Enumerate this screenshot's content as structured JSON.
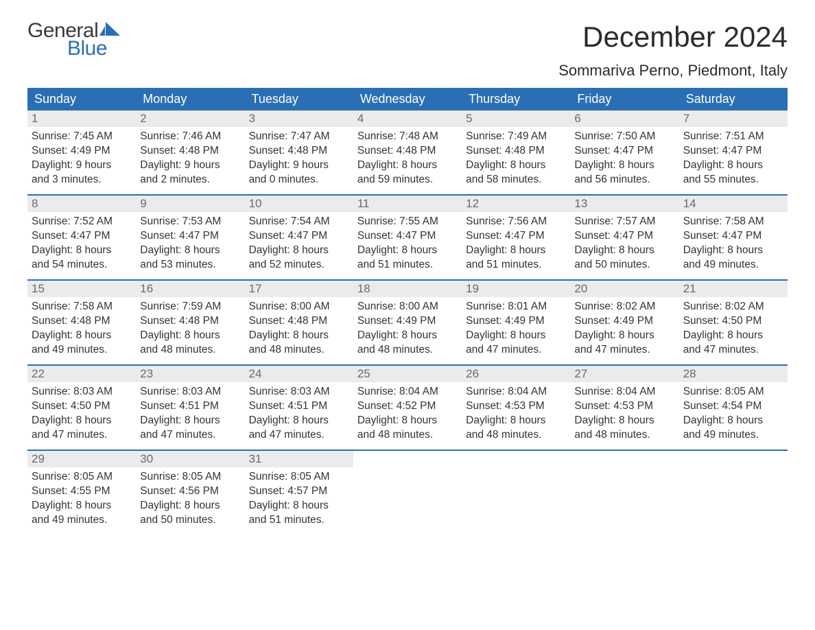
{
  "logo": {
    "word1": "General",
    "word2": "Blue",
    "color1": "#3a3a3a",
    "color2": "#2a6fb5"
  },
  "title": "December 2024",
  "location": "Sommariva Perno, Piedmont, Italy",
  "colors": {
    "header_bg": "#2a6fb5",
    "header_text": "#ffffff",
    "daynum_bg": "#ebebeb",
    "daynum_text": "#6a6a6a",
    "body_text": "#333333",
    "week_border": "#2a6fb5",
    "page_bg": "#ffffff"
  },
  "days_of_week": [
    "Sunday",
    "Monday",
    "Tuesday",
    "Wednesday",
    "Thursday",
    "Friday",
    "Saturday"
  ],
  "weeks": [
    [
      {
        "n": "1",
        "sunrise": "Sunrise: 7:45 AM",
        "sunset": "Sunset: 4:49 PM",
        "daylight": "Daylight: 9 hours\nand 3 minutes."
      },
      {
        "n": "2",
        "sunrise": "Sunrise: 7:46 AM",
        "sunset": "Sunset: 4:48 PM",
        "daylight": "Daylight: 9 hours\nand 2 minutes."
      },
      {
        "n": "3",
        "sunrise": "Sunrise: 7:47 AM",
        "sunset": "Sunset: 4:48 PM",
        "daylight": "Daylight: 9 hours\nand 0 minutes."
      },
      {
        "n": "4",
        "sunrise": "Sunrise: 7:48 AM",
        "sunset": "Sunset: 4:48 PM",
        "daylight": "Daylight: 8 hours\nand 59 minutes."
      },
      {
        "n": "5",
        "sunrise": "Sunrise: 7:49 AM",
        "sunset": "Sunset: 4:48 PM",
        "daylight": "Daylight: 8 hours\nand 58 minutes."
      },
      {
        "n": "6",
        "sunrise": "Sunrise: 7:50 AM",
        "sunset": "Sunset: 4:47 PM",
        "daylight": "Daylight: 8 hours\nand 56 minutes."
      },
      {
        "n": "7",
        "sunrise": "Sunrise: 7:51 AM",
        "sunset": "Sunset: 4:47 PM",
        "daylight": "Daylight: 8 hours\nand 55 minutes."
      }
    ],
    [
      {
        "n": "8",
        "sunrise": "Sunrise: 7:52 AM",
        "sunset": "Sunset: 4:47 PM",
        "daylight": "Daylight: 8 hours\nand 54 minutes."
      },
      {
        "n": "9",
        "sunrise": "Sunrise: 7:53 AM",
        "sunset": "Sunset: 4:47 PM",
        "daylight": "Daylight: 8 hours\nand 53 minutes."
      },
      {
        "n": "10",
        "sunrise": "Sunrise: 7:54 AM",
        "sunset": "Sunset: 4:47 PM",
        "daylight": "Daylight: 8 hours\nand 52 minutes."
      },
      {
        "n": "11",
        "sunrise": "Sunrise: 7:55 AM",
        "sunset": "Sunset: 4:47 PM",
        "daylight": "Daylight: 8 hours\nand 51 minutes."
      },
      {
        "n": "12",
        "sunrise": "Sunrise: 7:56 AM",
        "sunset": "Sunset: 4:47 PM",
        "daylight": "Daylight: 8 hours\nand 51 minutes."
      },
      {
        "n": "13",
        "sunrise": "Sunrise: 7:57 AM",
        "sunset": "Sunset: 4:47 PM",
        "daylight": "Daylight: 8 hours\nand 50 minutes."
      },
      {
        "n": "14",
        "sunrise": "Sunrise: 7:58 AM",
        "sunset": "Sunset: 4:47 PM",
        "daylight": "Daylight: 8 hours\nand 49 minutes."
      }
    ],
    [
      {
        "n": "15",
        "sunrise": "Sunrise: 7:58 AM",
        "sunset": "Sunset: 4:48 PM",
        "daylight": "Daylight: 8 hours\nand 49 minutes."
      },
      {
        "n": "16",
        "sunrise": "Sunrise: 7:59 AM",
        "sunset": "Sunset: 4:48 PM",
        "daylight": "Daylight: 8 hours\nand 48 minutes."
      },
      {
        "n": "17",
        "sunrise": "Sunrise: 8:00 AM",
        "sunset": "Sunset: 4:48 PM",
        "daylight": "Daylight: 8 hours\nand 48 minutes."
      },
      {
        "n": "18",
        "sunrise": "Sunrise: 8:00 AM",
        "sunset": "Sunset: 4:49 PM",
        "daylight": "Daylight: 8 hours\nand 48 minutes."
      },
      {
        "n": "19",
        "sunrise": "Sunrise: 8:01 AM",
        "sunset": "Sunset: 4:49 PM",
        "daylight": "Daylight: 8 hours\nand 47 minutes."
      },
      {
        "n": "20",
        "sunrise": "Sunrise: 8:02 AM",
        "sunset": "Sunset: 4:49 PM",
        "daylight": "Daylight: 8 hours\nand 47 minutes."
      },
      {
        "n": "21",
        "sunrise": "Sunrise: 8:02 AM",
        "sunset": "Sunset: 4:50 PM",
        "daylight": "Daylight: 8 hours\nand 47 minutes."
      }
    ],
    [
      {
        "n": "22",
        "sunrise": "Sunrise: 8:03 AM",
        "sunset": "Sunset: 4:50 PM",
        "daylight": "Daylight: 8 hours\nand 47 minutes."
      },
      {
        "n": "23",
        "sunrise": "Sunrise: 8:03 AM",
        "sunset": "Sunset: 4:51 PM",
        "daylight": "Daylight: 8 hours\nand 47 minutes."
      },
      {
        "n": "24",
        "sunrise": "Sunrise: 8:03 AM",
        "sunset": "Sunset: 4:51 PM",
        "daylight": "Daylight: 8 hours\nand 47 minutes."
      },
      {
        "n": "25",
        "sunrise": "Sunrise: 8:04 AM",
        "sunset": "Sunset: 4:52 PM",
        "daylight": "Daylight: 8 hours\nand 48 minutes."
      },
      {
        "n": "26",
        "sunrise": "Sunrise: 8:04 AM",
        "sunset": "Sunset: 4:53 PM",
        "daylight": "Daylight: 8 hours\nand 48 minutes."
      },
      {
        "n": "27",
        "sunrise": "Sunrise: 8:04 AM",
        "sunset": "Sunset: 4:53 PM",
        "daylight": "Daylight: 8 hours\nand 48 minutes."
      },
      {
        "n": "28",
        "sunrise": "Sunrise: 8:05 AM",
        "sunset": "Sunset: 4:54 PM",
        "daylight": "Daylight: 8 hours\nand 49 minutes."
      }
    ],
    [
      {
        "n": "29",
        "sunrise": "Sunrise: 8:05 AM",
        "sunset": "Sunset: 4:55 PM",
        "daylight": "Daylight: 8 hours\nand 49 minutes."
      },
      {
        "n": "30",
        "sunrise": "Sunrise: 8:05 AM",
        "sunset": "Sunset: 4:56 PM",
        "daylight": "Daylight: 8 hours\nand 50 minutes."
      },
      {
        "n": "31",
        "sunrise": "Sunrise: 8:05 AM",
        "sunset": "Sunset: 4:57 PM",
        "daylight": "Daylight: 8 hours\nand 51 minutes."
      },
      {
        "empty": true
      },
      {
        "empty": true
      },
      {
        "empty": true
      },
      {
        "empty": true
      }
    ]
  ]
}
